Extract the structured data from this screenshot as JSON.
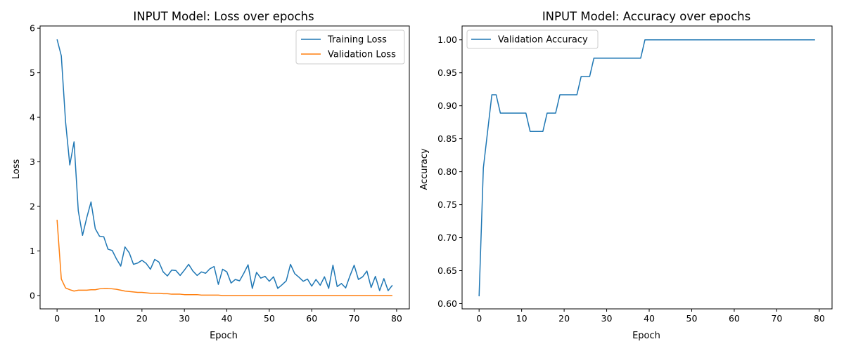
{
  "chart_data": [
    {
      "type": "line",
      "title": "INPUT Model: Loss over epochs",
      "xlabel": "Epoch",
      "ylabel": "Loss",
      "xlim": [
        -4,
        83
      ],
      "ylim": [
        -0.3,
        6.05
      ],
      "xticks": [
        0,
        10,
        20,
        30,
        40,
        50,
        60,
        70,
        80
      ],
      "yticks": [
        0,
        1,
        2,
        3,
        4,
        5,
        6
      ],
      "legend_position": "top-right",
      "series": [
        {
          "name": "Training Loss",
          "color": "#1f77b4",
          "values": [
            5.75,
            5.38,
            3.9,
            2.93,
            3.45,
            1.9,
            1.35,
            1.75,
            2.1,
            1.5,
            1.33,
            1.32,
            1.04,
            1.01,
            0.82,
            0.66,
            1.09,
            0.96,
            0.7,
            0.73,
            0.79,
            0.72,
            0.59,
            0.81,
            0.75,
            0.53,
            0.44,
            0.57,
            0.56,
            0.45,
            0.57,
            0.7,
            0.55,
            0.45,
            0.53,
            0.5,
            0.6,
            0.65,
            0.25,
            0.59,
            0.53,
            0.28,
            0.36,
            0.33,
            0.5,
            0.69,
            0.16,
            0.52,
            0.39,
            0.43,
            0.32,
            0.42,
            0.16,
            0.24,
            0.33,
            0.7,
            0.49,
            0.41,
            0.32,
            0.37,
            0.21,
            0.36,
            0.23,
            0.42,
            0.16,
            0.68,
            0.2,
            0.27,
            0.17,
            0.44,
            0.68,
            0.36,
            0.42,
            0.55,
            0.18,
            0.43,
            0.11,
            0.38,
            0.11,
            0.23
          ]
        },
        {
          "name": "Validation Loss",
          "color": "#ff7f0e",
          "values": [
            1.7,
            0.37,
            0.17,
            0.13,
            0.1,
            0.12,
            0.12,
            0.12,
            0.13,
            0.13,
            0.15,
            0.16,
            0.16,
            0.15,
            0.14,
            0.12,
            0.1,
            0.09,
            0.08,
            0.07,
            0.07,
            0.06,
            0.05,
            0.05,
            0.05,
            0.04,
            0.04,
            0.03,
            0.03,
            0.03,
            0.02,
            0.02,
            0.02,
            0.02,
            0.01,
            0.01,
            0.01,
            0.01,
            0.01,
            0.0,
            0.0,
            0.0,
            0.0,
            0.0,
            0.0,
            0.0,
            0.0,
            0.0,
            0.0,
            0.0,
            0.0,
            0.0,
            0.0,
            0.0,
            0.0,
            0.0,
            0.0,
            0.0,
            0.0,
            0.0,
            0.0,
            0.0,
            0.0,
            0.0,
            0.0,
            0.0,
            0.0,
            0.0,
            0.0,
            0.0,
            0.0,
            0.0,
            0.0,
            0.0,
            0.0,
            0.0,
            0.0,
            0.0,
            0.0,
            0.0
          ]
        }
      ]
    },
    {
      "type": "line",
      "title": "INPUT Model: Accuracy over epochs",
      "xlabel": "Epoch",
      "ylabel": "Accuracy",
      "xlim": [
        -4,
        83
      ],
      "ylim": [
        0.592,
        1.021
      ],
      "xticks": [
        0,
        10,
        20,
        30,
        40,
        50,
        60,
        70,
        80
      ],
      "yticks": [
        0.6,
        0.65,
        0.7,
        0.75,
        0.8,
        0.85,
        0.9,
        0.95,
        1.0
      ],
      "ytick_labels": [
        "0.60",
        "0.65",
        "0.70",
        "0.75",
        "0.80",
        "0.85",
        "0.90",
        "0.95",
        "1.00"
      ],
      "legend_position": "top-left",
      "series": [
        {
          "name": "Validation Accuracy",
          "color": "#1f77b4",
          "values": [
            0.6111,
            0.8056,
            0.8611,
            0.9167,
            0.9167,
            0.8889,
            0.8889,
            0.8889,
            0.8889,
            0.8889,
            0.8889,
            0.8889,
            0.8611,
            0.8611,
            0.8611,
            0.8611,
            0.8889,
            0.8889,
            0.8889,
            0.9167,
            0.9167,
            0.9167,
            0.9167,
            0.9167,
            0.9444,
            0.9444,
            0.9444,
            0.9722,
            0.9722,
            0.9722,
            0.9722,
            0.9722,
            0.9722,
            0.9722,
            0.9722,
            0.9722,
            0.9722,
            0.9722,
            0.9722,
            1.0,
            1.0,
            1.0,
            1.0,
            1.0,
            1.0,
            1.0,
            1.0,
            1.0,
            1.0,
            1.0,
            1.0,
            1.0,
            1.0,
            1.0,
            1.0,
            1.0,
            1.0,
            1.0,
            1.0,
            1.0,
            1.0,
            1.0,
            1.0,
            1.0,
            1.0,
            1.0,
            1.0,
            1.0,
            1.0,
            1.0,
            1.0,
            1.0,
            1.0,
            1.0,
            1.0,
            1.0,
            1.0,
            1.0,
            1.0,
            1.0
          ]
        }
      ]
    }
  ]
}
